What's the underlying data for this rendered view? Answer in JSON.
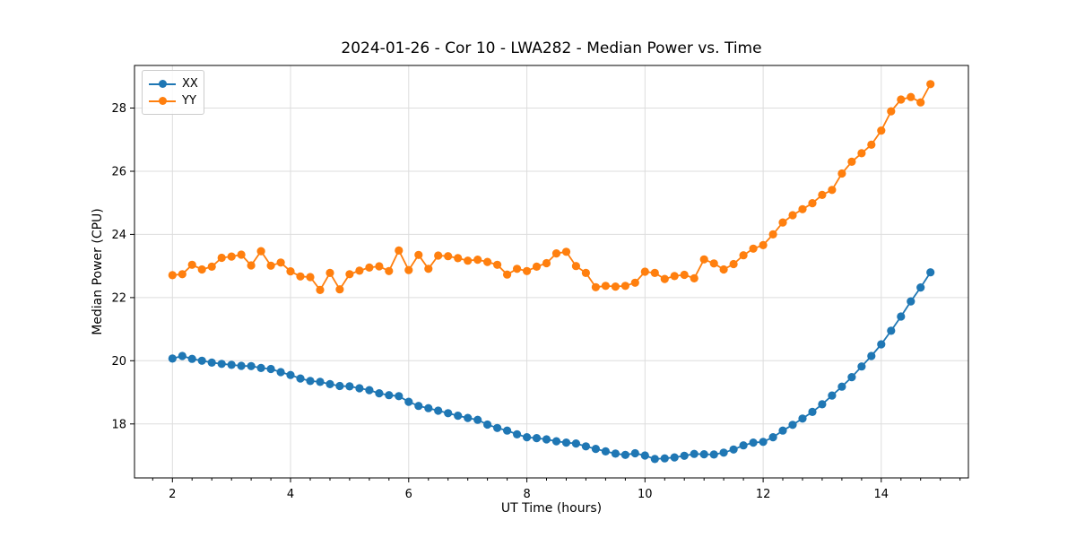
{
  "chart_data": {
    "type": "line",
    "title": "2024-01-26 - Cor 10 - LWA282 - Median Power vs. Time",
    "xlabel": "UT Time (hours)",
    "ylabel": "Median Power (CPU)",
    "xlim": [
      1.3583,
      15.475
    ],
    "ylim": [
      16.29,
      29.35
    ],
    "x_ticks": [
      2,
      4,
      6,
      8,
      10,
      12,
      14
    ],
    "y_ticks": [
      18,
      20,
      22,
      24,
      26,
      28
    ],
    "x_minor_step": 0.33333,
    "grid": true,
    "grid_color": "#dddddd",
    "legend_position": "upper left",
    "x": [
      2,
      2.1667,
      2.3333,
      2.5,
      2.6667,
      2.8333,
      3,
      3.1667,
      3.3333,
      3.5,
      3.6667,
      3.8333,
      4,
      4.1667,
      4.3333,
      4.5,
      4.6667,
      4.8333,
      5,
      5.1667,
      5.3333,
      5.5,
      5.6667,
      5.8333,
      6,
      6.1667,
      6.3333,
      6.5,
      6.6667,
      6.8333,
      7,
      7.1667,
      7.3333,
      7.5,
      7.6667,
      7.8333,
      8,
      8.1667,
      8.3333,
      8.5,
      8.6667,
      8.8333,
      9,
      9.1667,
      9.3333,
      9.5,
      9.6667,
      9.8333,
      10,
      10.1667,
      10.3333,
      10.5,
      10.6667,
      10.8333,
      11,
      11.1667,
      11.3333,
      11.5,
      11.6667,
      11.8333,
      12,
      12.1667,
      12.3333,
      12.5,
      12.6667,
      12.8333,
      13,
      13.1667,
      13.3333,
      13.5,
      13.6667,
      13.8333,
      14,
      14.1667,
      14.3333,
      14.5,
      14.6667,
      14.8333
    ],
    "series": [
      {
        "name": "XX",
        "color": "#1f77b4",
        "values": [
          20.07,
          20.15,
          20.06,
          20.0,
          19.94,
          19.9,
          19.87,
          19.84,
          19.83,
          19.77,
          19.74,
          19.64,
          19.55,
          19.44,
          19.36,
          19.33,
          19.26,
          19.2,
          19.19,
          19.13,
          19.07,
          18.97,
          18.91,
          18.88,
          18.7,
          18.57,
          18.5,
          18.42,
          18.34,
          18.26,
          18.19,
          18.13,
          17.98,
          17.87,
          17.79,
          17.67,
          17.58,
          17.55,
          17.51,
          17.45,
          17.41,
          17.38,
          17.29,
          17.21,
          17.13,
          17.06,
          17.02,
          17.07,
          17.0,
          16.89,
          16.91,
          16.94,
          16.99,
          17.05,
          17.04,
          17.03,
          17.09,
          17.19,
          17.32,
          17.41,
          17.43,
          17.58,
          17.79,
          17.97,
          18.17,
          18.38,
          18.62,
          18.9,
          19.18,
          19.48,
          19.82,
          20.15,
          20.52,
          20.95,
          21.4,
          21.88,
          22.32,
          22.8
        ]
      },
      {
        "name": "YY",
        "color": "#ff7f0e",
        "values": [
          22.71,
          22.74,
          23.04,
          22.89,
          22.98,
          23.26,
          23.3,
          23.36,
          23.02,
          23.47,
          23.01,
          23.11,
          22.83,
          22.67,
          22.65,
          22.24,
          22.78,
          22.26,
          22.74,
          22.85,
          22.95,
          22.99,
          22.84,
          23.49,
          22.87,
          23.35,
          22.91,
          23.33,
          23.31,
          23.25,
          23.17,
          23.2,
          23.13,
          23.04,
          22.73,
          22.91,
          22.84,
          22.98,
          23.09,
          23.4,
          23.45,
          23.0,
          22.78,
          22.33,
          22.37,
          22.35,
          22.37,
          22.47,
          22.82,
          22.78,
          22.59,
          22.68,
          22.72,
          22.61,
          23.21,
          23.08,
          22.89,
          23.06,
          23.34,
          23.55,
          23.66,
          24.0,
          24.38,
          24.61,
          24.8,
          24.99,
          25.25,
          25.41,
          25.93,
          26.3,
          26.57,
          26.84,
          27.29,
          27.9,
          28.27,
          28.35,
          28.18,
          28.76
        ]
      }
    ]
  }
}
